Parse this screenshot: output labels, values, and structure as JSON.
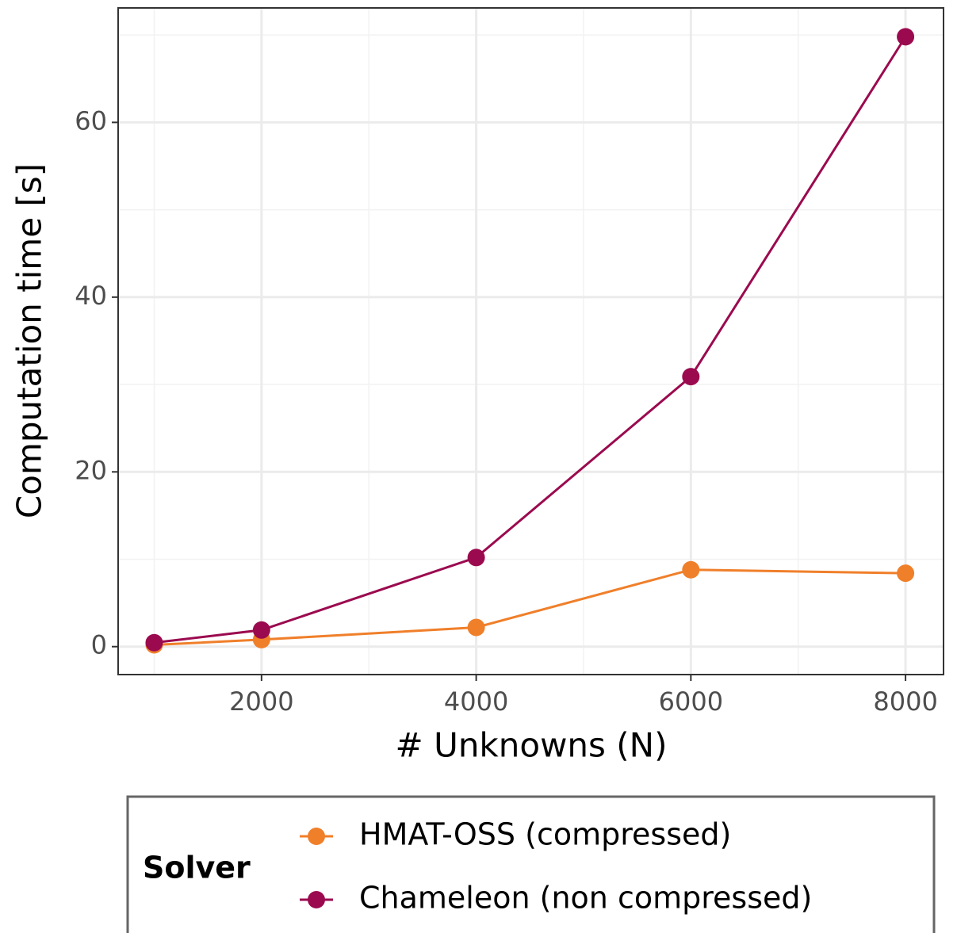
{
  "chart_data": {
    "type": "line",
    "x": [
      1000,
      2000,
      4000,
      6000,
      8000
    ],
    "series": [
      {
        "name": "HMAT-OSS (compressed)",
        "color": "#f07f2a",
        "values": [
          0.2,
          0.8,
          2.2,
          8.8,
          8.4
        ]
      },
      {
        "name": "Chameleon (non compressed)",
        "color": "#9b0a4f",
        "values": [
          0.45,
          1.9,
          10.2,
          30.9,
          69.8
        ]
      }
    ],
    "xlabel": "# Unknowns (N)",
    "ylabel": "Computation time [s]",
    "legend_title": "Solver",
    "legend": "bottom",
    "xlim": [
      664,
      8354
    ],
    "xticks": [
      2000,
      4000,
      6000,
      8000
    ],
    "xminor": [
      1000,
      3000,
      5000,
      7000
    ],
    "ylim": [
      -3.2,
      73.1
    ],
    "yticks": [
      0,
      20,
      40,
      60
    ],
    "yminor": [
      10,
      30,
      50,
      70
    ],
    "grid": true
  }
}
